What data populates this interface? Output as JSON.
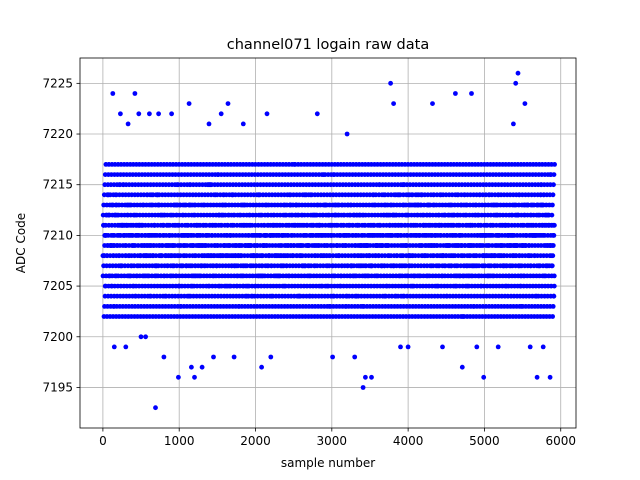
{
  "chart_data": {
    "type": "scatter",
    "title": "channel071 logain raw data",
    "xlabel": "sample number",
    "ylabel": "ADC Code",
    "xlim": [
      -300,
      6200
    ],
    "ylim": [
      7191,
      7227.5
    ],
    "xticks": [
      0,
      1000,
      2000,
      3000,
      4000,
      5000,
      6000
    ],
    "yticks": [
      7195,
      7200,
      7205,
      7210,
      7215,
      7220,
      7225
    ],
    "grid": true,
    "marker_color": "#0000ff",
    "n_samples": 5920,
    "series": [
      {
        "values_note": "dense band of integer ADC codes from about 7202 to 7217 for all samples 0 to 5919; sparse outliers listed below",
        "band_min": 7202,
        "band_max": 7217,
        "outliers": [
          [
            130,
            7224
          ],
          [
            150,
            7199
          ],
          [
            230,
            7222
          ],
          [
            300,
            7199
          ],
          [
            330,
            7221
          ],
          [
            420,
            7224
          ],
          [
            470,
            7222
          ],
          [
            500,
            7200
          ],
          [
            560,
            7200
          ],
          [
            610,
            7222
          ],
          [
            690,
            7193
          ],
          [
            730,
            7222
          ],
          [
            800,
            7198
          ],
          [
            900,
            7222
          ],
          [
            990,
            7196
          ],
          [
            1130,
            7223
          ],
          [
            1160,
            7197
          ],
          [
            1200,
            7196
          ],
          [
            1300,
            7197
          ],
          [
            1390,
            7221
          ],
          [
            1450,
            7198
          ],
          [
            1550,
            7222
          ],
          [
            1640,
            7223
          ],
          [
            1720,
            7198
          ],
          [
            1840,
            7221
          ],
          [
            2080,
            7197
          ],
          [
            2150,
            7222
          ],
          [
            2200,
            7198
          ],
          [
            2810,
            7222
          ],
          [
            3010,
            7198
          ],
          [
            3200,
            7220
          ],
          [
            3300,
            7198
          ],
          [
            3410,
            7195
          ],
          [
            3440,
            7196
          ],
          [
            3520,
            7196
          ],
          [
            3770,
            7225
          ],
          [
            3810,
            7223
          ],
          [
            3900,
            7199
          ],
          [
            4000,
            7199
          ],
          [
            4320,
            7223
          ],
          [
            4450,
            7199
          ],
          [
            4620,
            7224
          ],
          [
            4710,
            7197
          ],
          [
            4830,
            7224
          ],
          [
            4900,
            7199
          ],
          [
            4990,
            7196
          ],
          [
            5180,
            7199
          ],
          [
            5380,
            7221
          ],
          [
            5410,
            7225
          ],
          [
            5440,
            7226
          ],
          [
            5530,
            7223
          ],
          [
            5600,
            7199
          ],
          [
            5690,
            7196
          ],
          [
            5770,
            7199
          ],
          [
            5860,
            7196
          ]
        ]
      }
    ]
  }
}
